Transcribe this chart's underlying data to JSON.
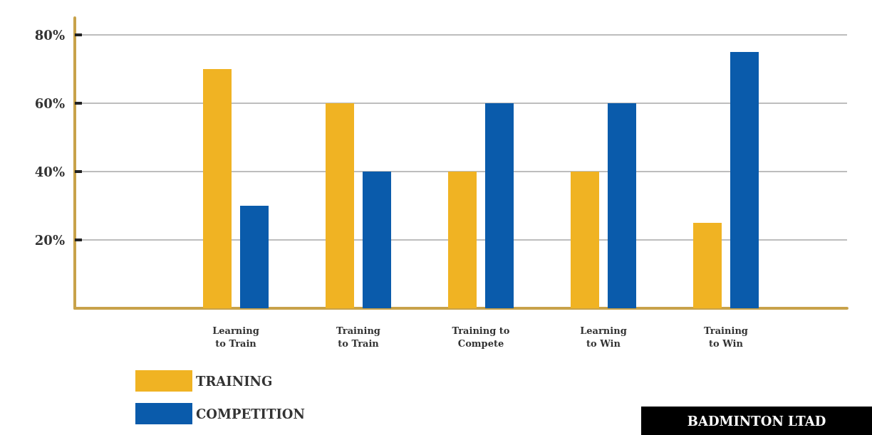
{
  "chart_data": {
    "type": "bar",
    "categories": [
      "Learning\nto Train",
      "Training\nto Train",
      "Training to\nCompete",
      "Learning\nto Win",
      "Training\nto Win"
    ],
    "series": [
      {
        "name": "TRAINING",
        "color": "#f0b323",
        "values": [
          70,
          60,
          40,
          40,
          25
        ]
      },
      {
        "name": "COMPETITION",
        "color": "#0a5bab",
        "values": [
          30,
          40,
          60,
          60,
          75
        ]
      }
    ],
    "ylim": [
      0,
      85
    ],
    "yticks": [
      {
        "value": 20,
        "label": "20%"
      },
      {
        "value": 40,
        "label": "40%"
      },
      {
        "value": 60,
        "label": "60%"
      },
      {
        "value": 80,
        "label": "80%"
      }
    ],
    "grid": "y",
    "legend": "bottom left",
    "annotations": [
      "BADMINTON LTAD"
    ]
  }
}
